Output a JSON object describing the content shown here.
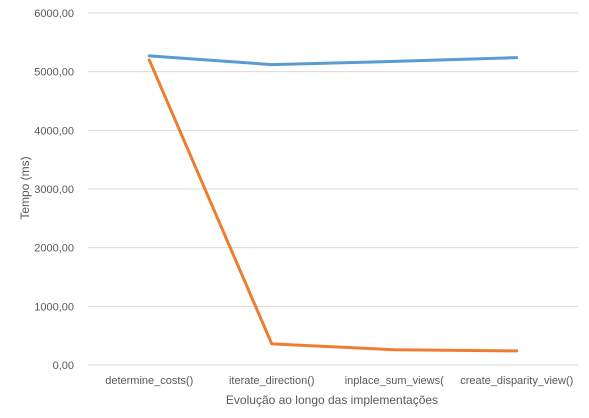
{
  "chart_data": {
    "type": "line",
    "categories": [
      "determine_costs()",
      "iterate_direction()",
      "inplace_sum_views(",
      "create_disparity_view()"
    ],
    "series": [
      {
        "color": "#5b9bd5",
        "values": [
          5270,
          5120,
          5175,
          5240
        ]
      },
      {
        "color": "#ed7d31",
        "values": [
          5200,
          360,
          260,
          240
        ]
      }
    ],
    "y_ticks": [
      "0,00",
      "1000,00",
      "2000,00",
      "3000,00",
      "4000,00",
      "5000,00",
      "6000,00"
    ],
    "ylim": [
      0,
      6000
    ],
    "xlabel": "Evolução ao longo das implementações",
    "ylabel": "Tempo (ms)",
    "grid": true,
    "legend": "none",
    "gridline_color": "#d9d9d9"
  }
}
